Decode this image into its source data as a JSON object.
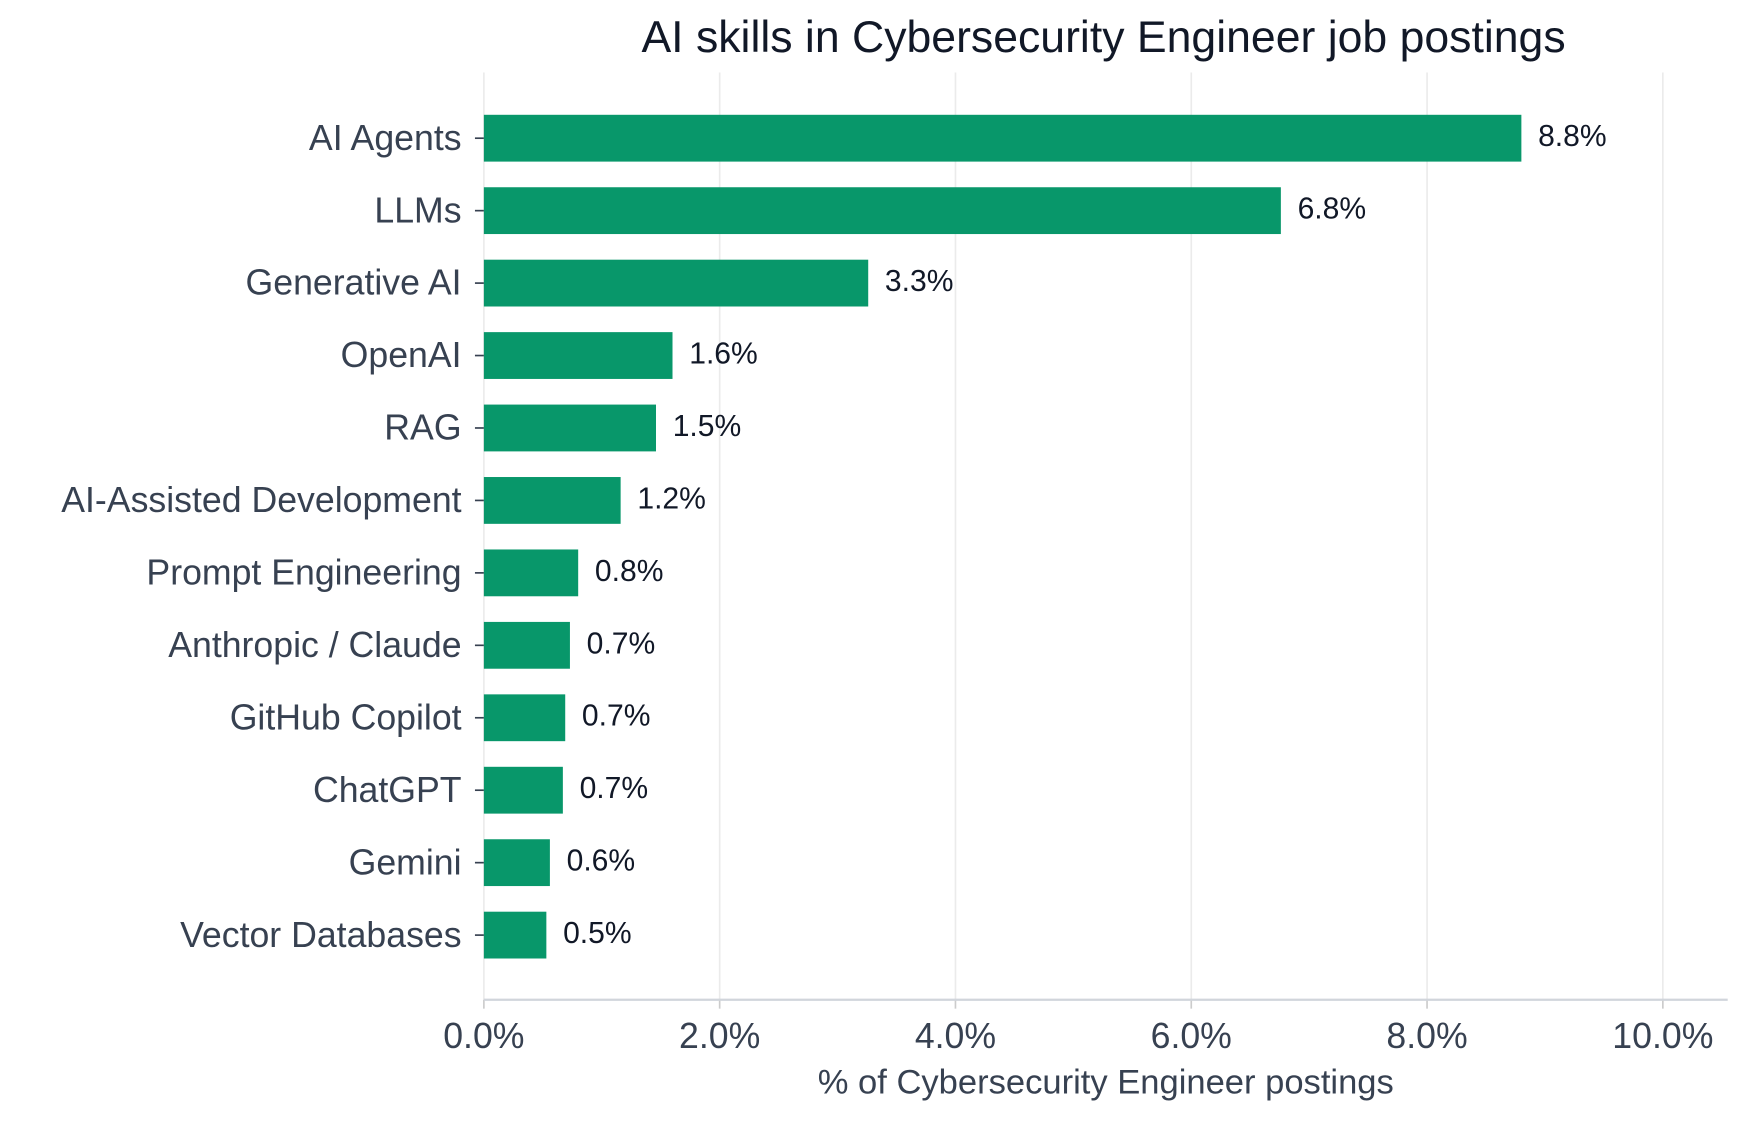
{
  "chart_data": {
    "type": "bar",
    "orientation": "horizontal",
    "title": "AI skills in Cybersecurity Engineer job postings",
    "x_label": "% of Cybersecurity Engineer postings",
    "categories": [
      "AI Agents",
      "LLMs",
      "Generative AI",
      "OpenAI",
      "RAG",
      "AI-Assisted Development",
      "Prompt Engineering",
      "Anthropic / Claude",
      "GitHub Copilot",
      "ChatGPT",
      "Gemini",
      "Vector Databases"
    ],
    "values": [
      8.8,
      6.76,
      3.26,
      1.6,
      1.46,
      1.16,
      0.8,
      0.73,
      0.69,
      0.67,
      0.56,
      0.53
    ],
    "value_labels": [
      "8.8%",
      "6.8%",
      "3.3%",
      "1.6%",
      "1.5%",
      "1.2%",
      "0.8%",
      "0.7%",
      "0.7%",
      "0.7%",
      "0.6%",
      "0.5%"
    ],
    "color": "#08976a",
    "xlim": [
      0,
      10.55
    ],
    "xticks": [
      {
        "value": 0,
        "label": "0.0%"
      },
      {
        "value": 2,
        "label": "2.0%"
      },
      {
        "value": 4,
        "label": "4.0%"
      },
      {
        "value": 6,
        "label": "6.0%"
      },
      {
        "value": 8,
        "label": "8.0%"
      },
      {
        "value": 10,
        "label": "10.0%"
      }
    ],
    "grid": true
  }
}
